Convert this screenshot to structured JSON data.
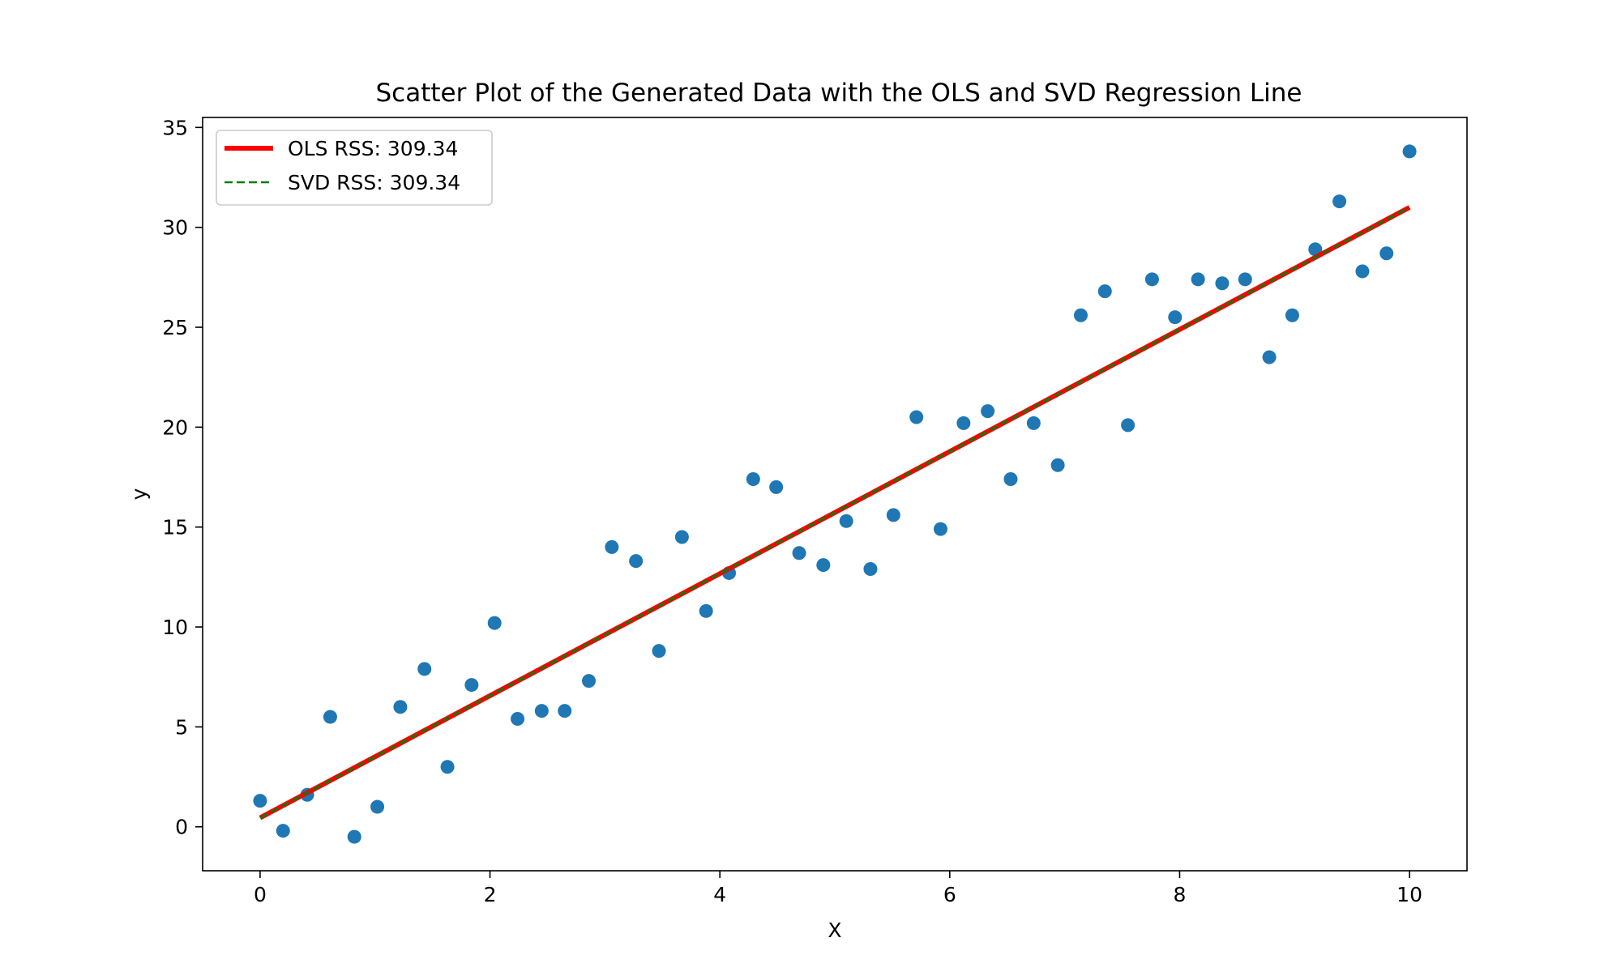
{
  "chart_data": {
    "type": "scatter",
    "title": "Scatter Plot of the Generated Data with the OLS and SVD Regression Line",
    "xlabel": "X",
    "ylabel": "y",
    "xlim": [
      -0.5,
      10.5
    ],
    "ylim": [
      -2.2,
      35.5
    ],
    "xticks": [
      0,
      2,
      4,
      6,
      8,
      10
    ],
    "yticks": [
      0,
      5,
      10,
      15,
      20,
      25,
      30,
      35
    ],
    "grid": false,
    "legend_position": "top-left",
    "series": [
      {
        "kind": "scatter",
        "color": "#1f77b4",
        "x": [
          0.0,
          0.2,
          0.41,
          0.61,
          0.82,
          1.02,
          1.22,
          1.43,
          1.63,
          1.84,
          2.04,
          2.24,
          2.45,
          2.65,
          2.86,
          3.06,
          3.27,
          3.47,
          3.67,
          3.88,
          4.08,
          4.29,
          4.49,
          4.69,
          4.9,
          5.1,
          5.31,
          5.51,
          5.71,
          5.92,
          6.12,
          6.33,
          6.53,
          6.73,
          6.94,
          7.14,
          7.35,
          7.55,
          7.76,
          7.96,
          8.16,
          8.37,
          8.57,
          8.78,
          8.98,
          9.18,
          9.39,
          9.59,
          9.8,
          10.0
        ],
        "y": [
          1.3,
          -0.2,
          1.6,
          5.5,
          -0.5,
          1.0,
          6.0,
          7.9,
          3.0,
          7.1,
          10.2,
          5.4,
          5.8,
          5.8,
          7.3,
          14.0,
          13.3,
          8.8,
          14.5,
          10.8,
          12.7,
          17.4,
          17.0,
          13.7,
          13.1,
          15.3,
          12.9,
          15.6,
          20.5,
          14.9,
          20.2,
          20.8,
          17.4,
          20.2,
          18.1,
          25.6,
          26.8,
          20.1,
          27.4,
          25.5,
          27.4,
          27.2,
          27.4,
          23.5,
          25.6,
          28.9,
          31.3,
          27.8,
          28.7,
          33.8
        ]
      },
      {
        "kind": "line",
        "name": "OLS RSS: 309.34",
        "color": "#ff0000",
        "style": "solid",
        "x": [
          0,
          10
        ],
        "y": [
          0.45,
          31.0
        ]
      },
      {
        "kind": "line",
        "name": "SVD RSS: 309.34",
        "color": "#008000",
        "style": "dashed",
        "x": [
          0,
          10
        ],
        "y": [
          0.45,
          31.0
        ]
      }
    ]
  }
}
